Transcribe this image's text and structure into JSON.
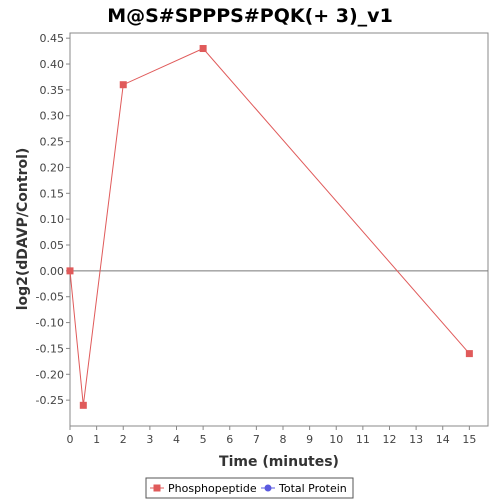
{
  "chart_data": {
    "type": "line",
    "title": "M@S#SPPPS#PQK(+ 3)_v1",
    "xlabel": "Time (minutes)",
    "ylabel": "log2(dDAVP/Control)",
    "xlim": [
      0,
      15.7
    ],
    "ylim": [
      -0.3,
      0.46
    ],
    "xticks": [
      0,
      1,
      2,
      3,
      4,
      5,
      6,
      7,
      8,
      9,
      10,
      11,
      12,
      13,
      14,
      15
    ],
    "yticks": [
      -0.25,
      -0.2,
      -0.15,
      -0.1,
      -0.05,
      0.0,
      0.05,
      0.1,
      0.15,
      0.2,
      0.25,
      0.3,
      0.35,
      0.4,
      0.45
    ],
    "ytick_labels": [
      "-0.25",
      "-0.20",
      "-0.15",
      "-0.10",
      "-0.05",
      "0.00",
      "0.05",
      "0.10",
      "0.15",
      "0.20",
      "0.25",
      "0.30",
      "0.35",
      "0.40",
      "0.45"
    ],
    "grid": false,
    "zero_line": true,
    "legend_position": "bottom",
    "series": [
      {
        "name": "Phosphopeptide",
        "color": "#e05a5a",
        "marker": "square",
        "x": [
          0,
          0.5,
          2,
          5,
          15
        ],
        "y": [
          0.0,
          -0.26,
          0.36,
          0.43,
          -0.16
        ]
      },
      {
        "name": "Total Protein",
        "color": "#5a5ae0",
        "marker": "circle",
        "x": [],
        "y": []
      }
    ]
  }
}
